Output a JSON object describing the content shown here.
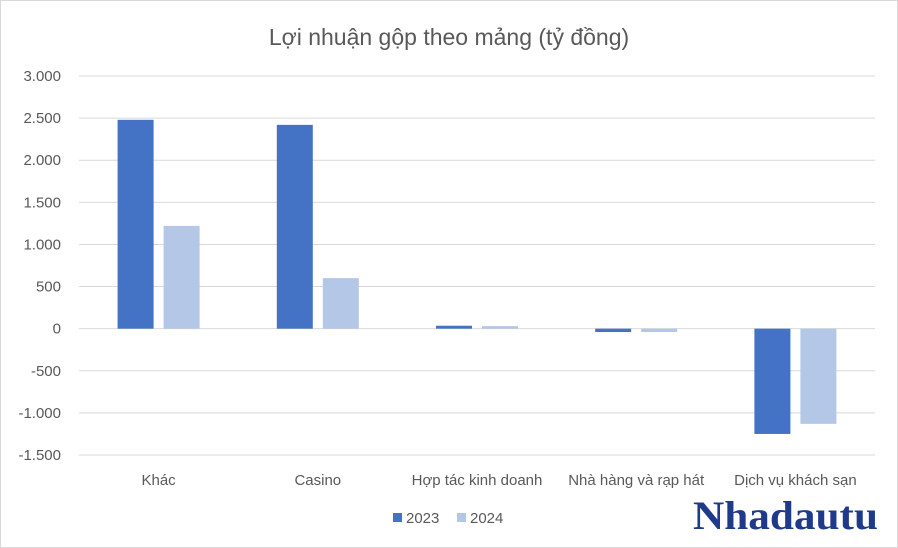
{
  "chart_data": {
    "type": "bar",
    "title": "Lợi nhuận gộp theo mảng (tỷ đồng)",
    "categories": [
      "Khác",
      "Casino",
      "Hợp tác kinh doanh",
      "Nhà hàng và rạp hát",
      "Dịch vụ khách sạn"
    ],
    "series": [
      {
        "name": "2023",
        "color": "#4472c4",
        "values": [
          2480,
          2420,
          35,
          -40,
          -1250
        ]
      },
      {
        "name": "2024",
        "color": "#b4c7e7",
        "values": [
          1220,
          600,
          30,
          -40,
          -1130
        ]
      }
    ],
    "ylim": [
      -1500,
      3000
    ],
    "yticks": [
      3000,
      2500,
      2000,
      1500,
      1000,
      500,
      0,
      -500,
      -1000,
      -1500
    ],
    "ytick_labels": [
      "3.000",
      "2.500",
      "2.000",
      "1.500",
      "1.000",
      "500",
      "0",
      "-500",
      "-1.000",
      "-1.500"
    ],
    "grid": true,
    "legend_position": "bottom-center"
  },
  "watermark": {
    "text": "Nhadautu",
    "color": "#1f3a8a"
  }
}
